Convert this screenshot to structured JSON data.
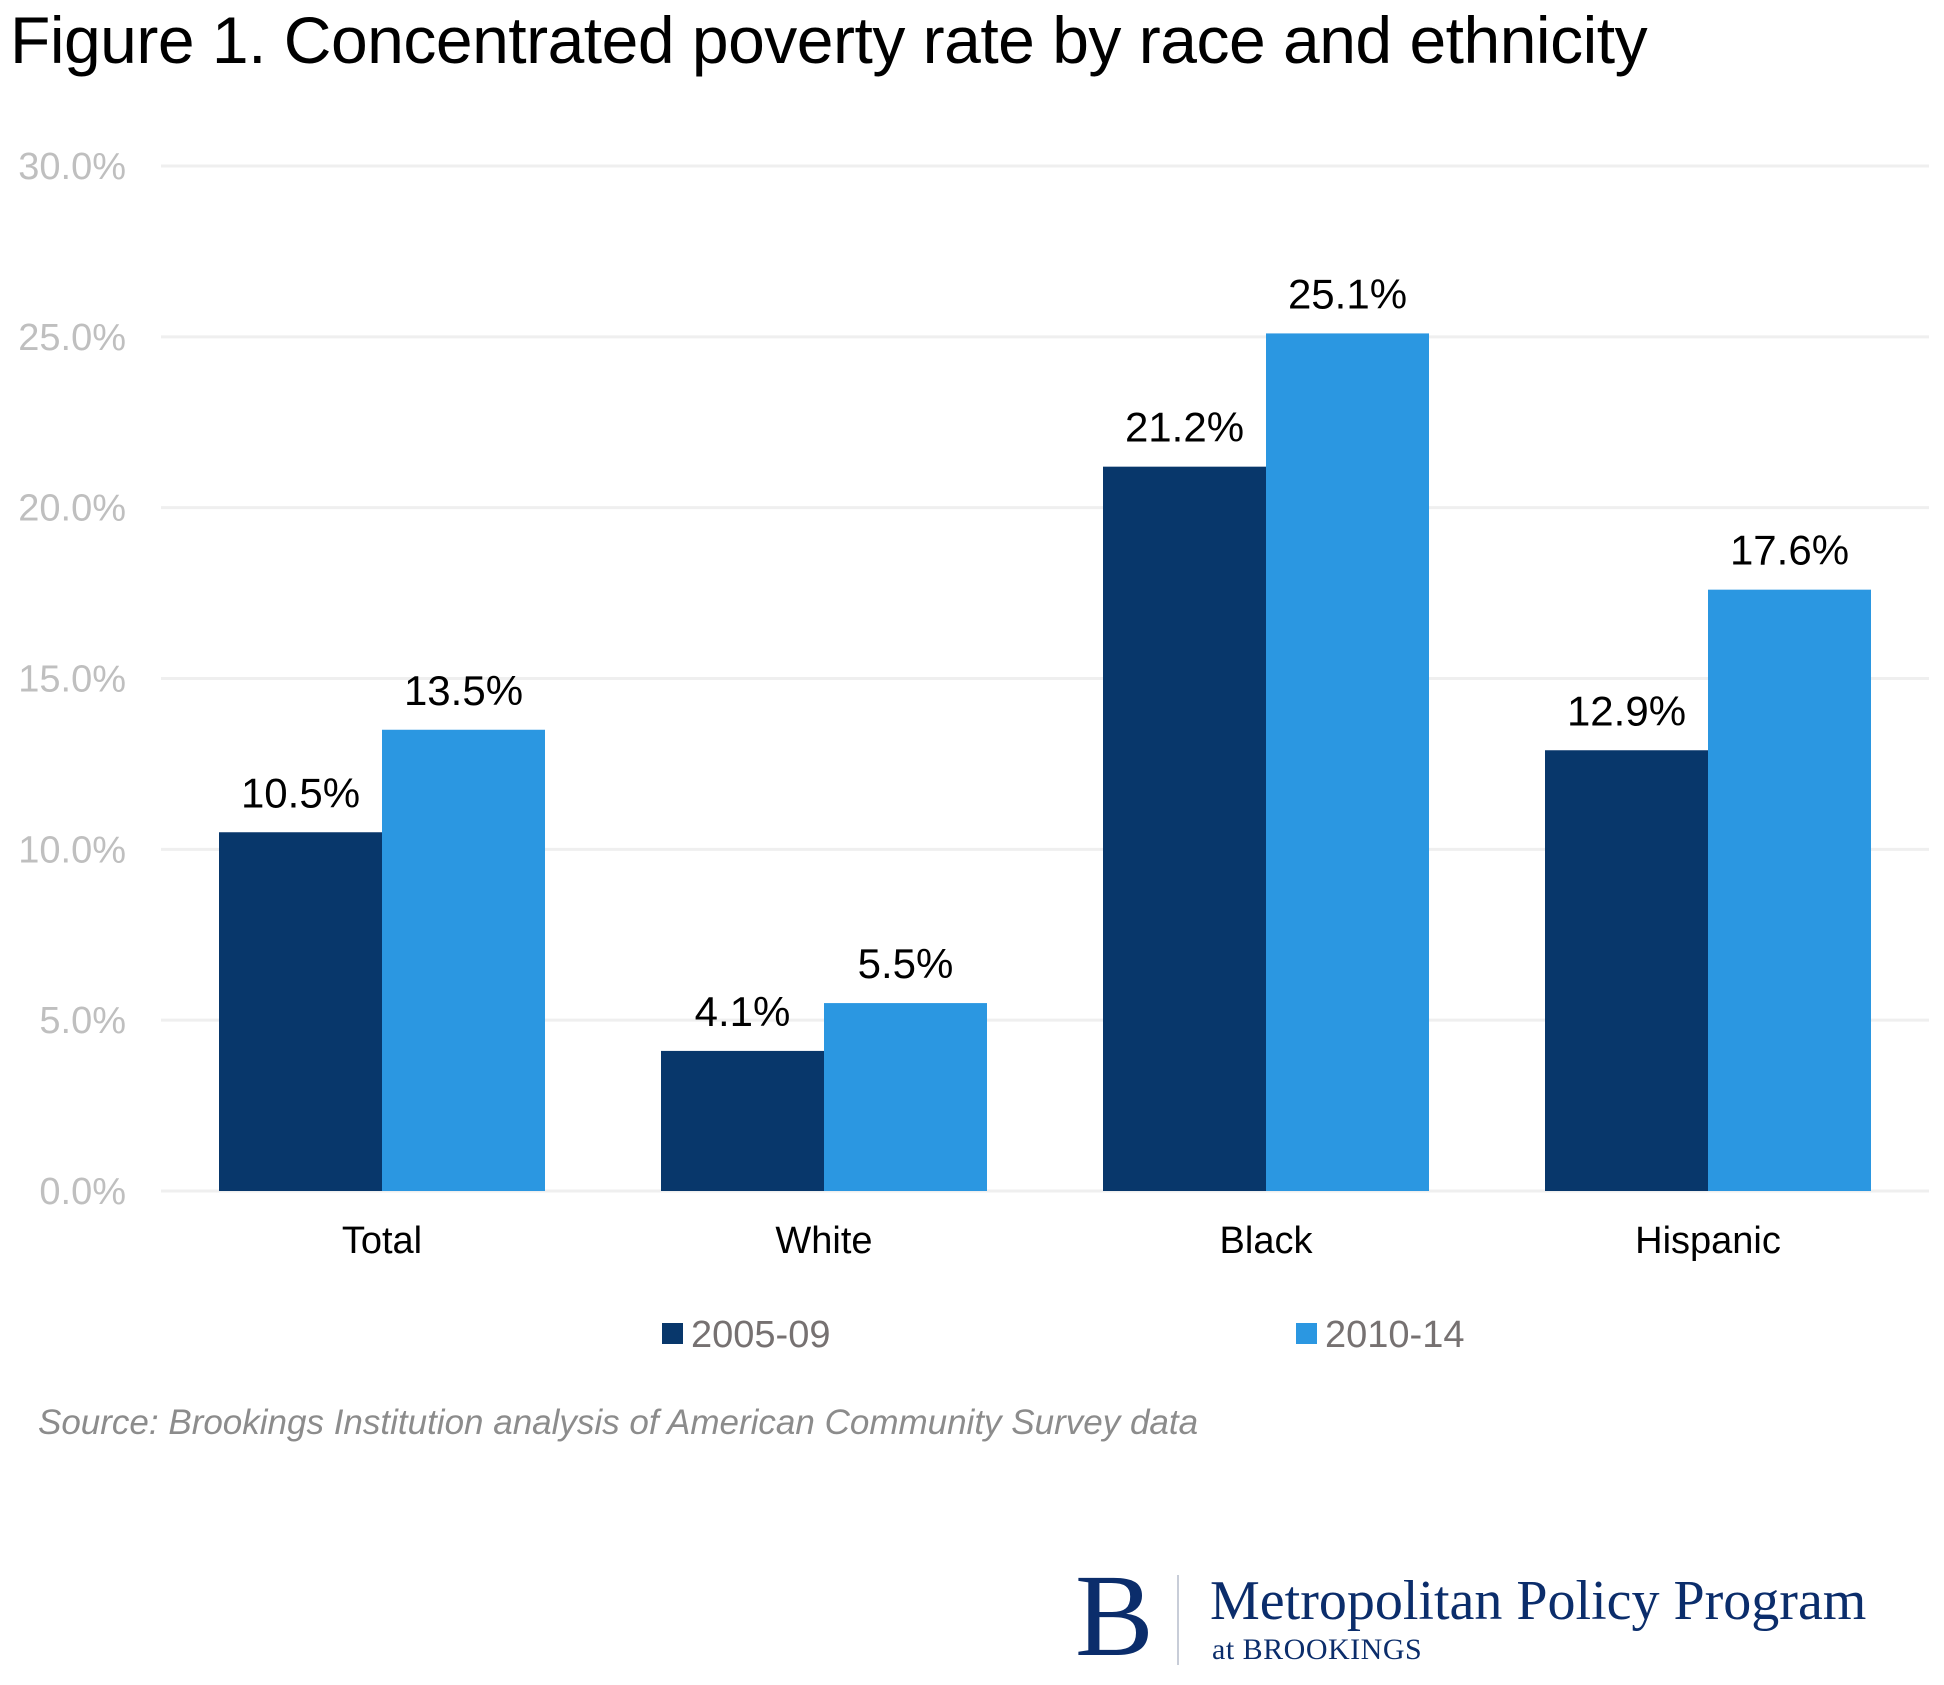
{
  "title": "Figure 1. Concentrated poverty rate by race and ethnicity",
  "source": "Source: Brookings Institution analysis of American Community Survey data",
  "logo": {
    "initial": "B",
    "name": "Metropolitan Policy Program",
    "subtitle": "at BROOKINGS",
    "color": "#0b2d6b"
  },
  "chart_data": {
    "type": "bar",
    "title": "Figure 1. Concentrated poverty rate by race and ethnicity",
    "xlabel": "",
    "ylabel": "",
    "categories": [
      "Total",
      "White",
      "Black",
      "Hispanic"
    ],
    "series": [
      {
        "name": "2005-09",
        "color": "#08376b",
        "values": [
          10.5,
          4.1,
          21.2,
          12.9
        ],
        "labels": [
          "10.5%",
          "4.1%",
          "21.2%",
          "12.9%"
        ]
      },
      {
        "name": "2010-14",
        "color": "#2b97e1",
        "values": [
          13.5,
          5.5,
          25.1,
          17.6
        ],
        "labels": [
          "13.5%",
          "5.5%",
          "25.1%",
          "17.6%"
        ]
      }
    ],
    "ylim": [
      0,
      30
    ],
    "yticks": [
      0,
      5,
      10,
      15,
      20,
      25,
      30
    ],
    "ytick_labels": [
      "0.0%",
      "5.0%",
      "10.0%",
      "15.0%",
      "20.0%",
      "25.0%",
      "30.0%"
    ],
    "grid": true,
    "legend_position": "bottom",
    "gridline_color": "#efefef"
  }
}
